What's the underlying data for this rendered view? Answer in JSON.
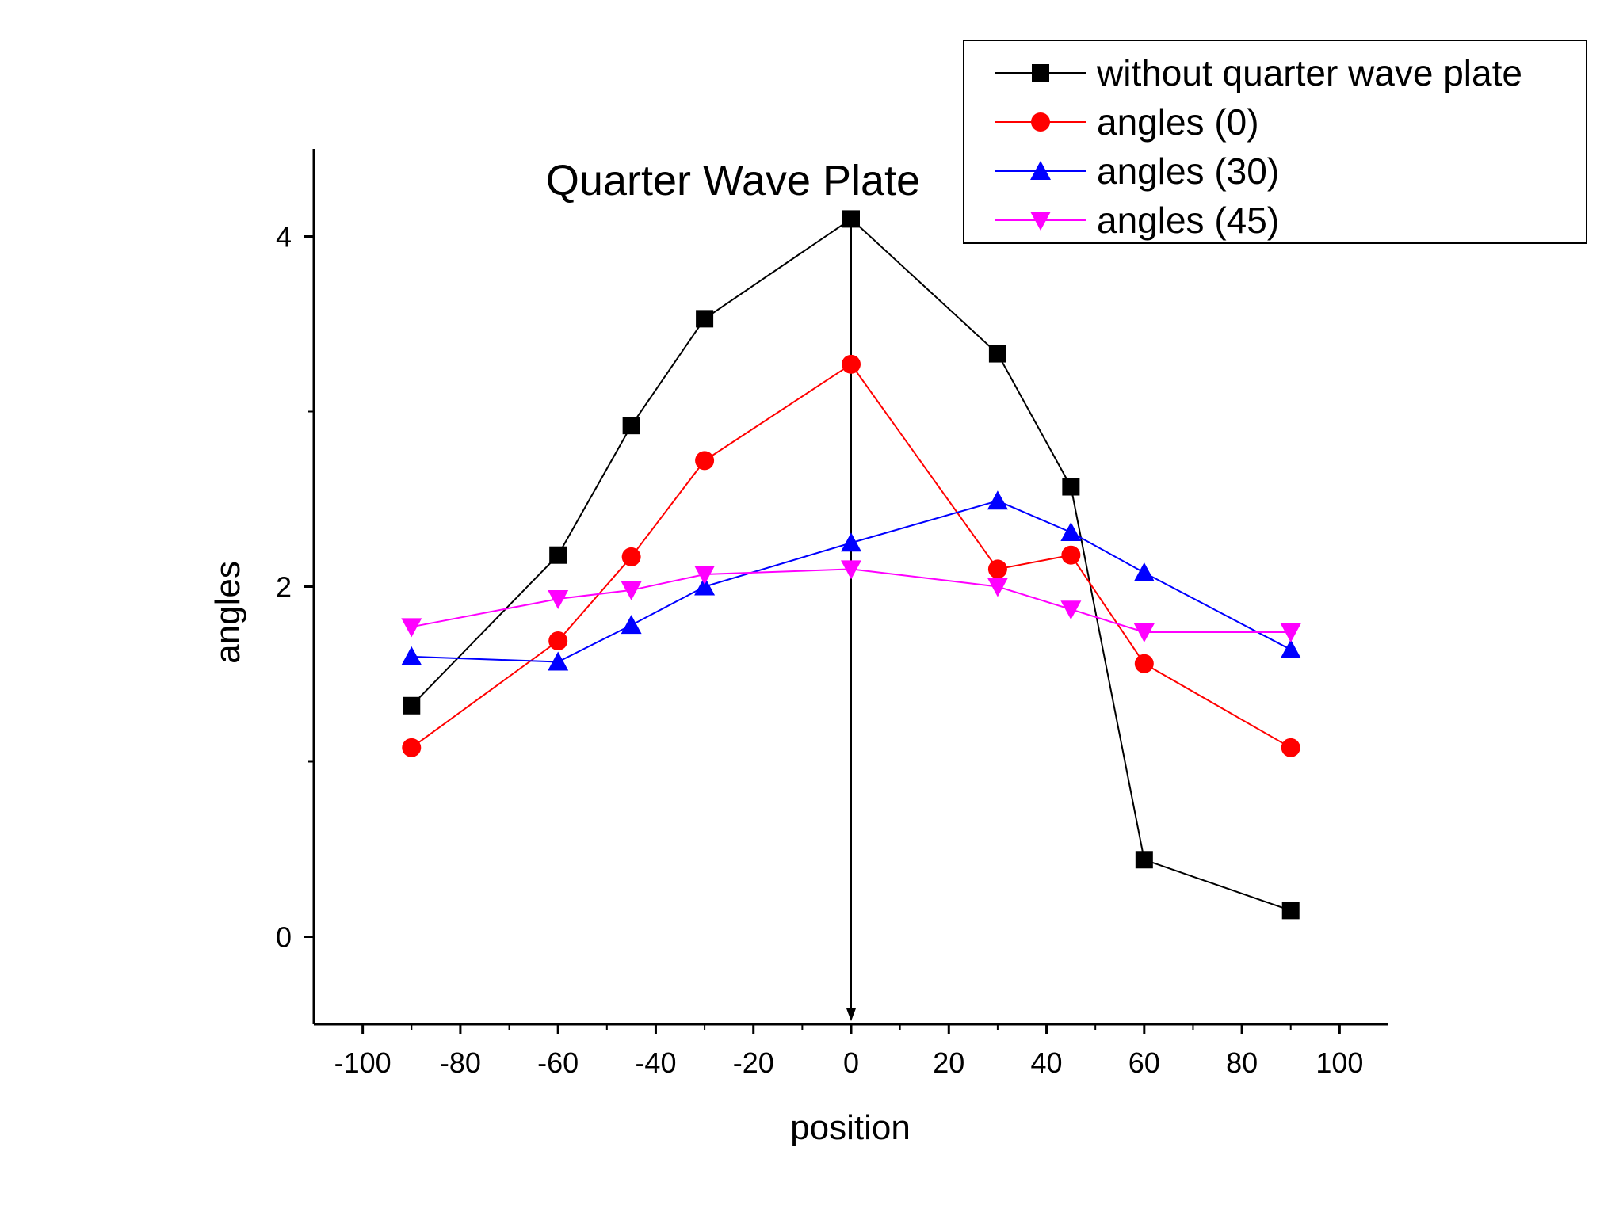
{
  "chart_data": {
    "type": "line",
    "title": "Quarter Wave Plate",
    "xlabel": "position",
    "ylabel": "angles",
    "xlim": [
      -110,
      110
    ],
    "ylim": [
      -0.5,
      4.5
    ],
    "x_ticks": [
      "-100",
      "-80",
      "-60",
      "-40",
      "-20",
      "0",
      "20",
      "40",
      "60",
      "80",
      "100"
    ],
    "y_ticks": [
      "0",
      "2",
      "4"
    ],
    "grid": false,
    "legend_position": "top-right",
    "x": [
      -90,
      -60,
      -45,
      -30,
      0,
      30,
      45,
      60,
      90
    ],
    "series": [
      {
        "name": "without quarter wave plate",
        "color": "#000000",
        "marker": "square",
        "values": [
          1.32,
          2.18,
          2.92,
          3.53,
          4.1,
          3.33,
          2.57,
          0.44,
          0.15
        ]
      },
      {
        "name": "angles (0)",
        "color": "#ff0000",
        "marker": "circle",
        "values": [
          1.08,
          1.69,
          2.17,
          2.72,
          3.27,
          2.1,
          2.18,
          1.56,
          1.08
        ]
      },
      {
        "name": "angles (30)",
        "color": "#0000ff",
        "marker": "triangle-up",
        "values": [
          1.6,
          1.57,
          1.78,
          2.0,
          2.25,
          2.49,
          2.31,
          2.08,
          1.64
        ]
      },
      {
        "name": "angles (45)",
        "color": "#ff00ff",
        "marker": "triangle-down",
        "values": [
          1.77,
          1.93,
          1.98,
          2.07,
          2.1,
          2.0,
          1.87,
          1.74,
          1.74
        ]
      }
    ],
    "annotation": {
      "type": "arrow",
      "x": 0,
      "from_y": 4.1,
      "to_y": -0.5,
      "color": "#000000"
    }
  }
}
